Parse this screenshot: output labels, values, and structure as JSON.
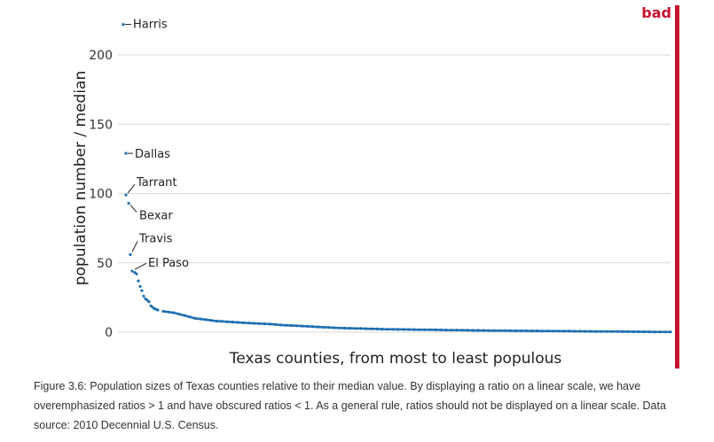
{
  "badge": {
    "label": "bad",
    "color": "#c8102e"
  },
  "chart_data": {
    "type": "scatter",
    "title": "",
    "xlabel": "Texas counties, from most to least populous",
    "ylabel": "population number / median",
    "ylim": [
      0,
      230
    ],
    "yticks": [
      0,
      50,
      100,
      150,
      200
    ],
    "grid": true,
    "point_color": "#1f6fb2",
    "series": [
      {
        "values": [
          222,
          129,
          99,
          93,
          56,
          44,
          43,
          42,
          37,
          33,
          30,
          26,
          24,
          23,
          22,
          19,
          18,
          17,
          16.5,
          16,
          15,
          14.5,
          14,
          13,
          12,
          11,
          10,
          9.5,
          9,
          8.5,
          8,
          7.8,
          7.5,
          7.3,
          7,
          6.8,
          6.6,
          6.4,
          6.2,
          6,
          5.8,
          5.5,
          5.2,
          5,
          4.8,
          4.6,
          4.4,
          4.2,
          4,
          3.8,
          3.6,
          3.4,
          3.2,
          3,
          2.9,
          2.8,
          2.7,
          2.6,
          2.5,
          2.4,
          2.3,
          2.2,
          2.1,
          2.05,
          2,
          1.95,
          1.9,
          1.85,
          1.8,
          1.75,
          1.7,
          1.65,
          1.6,
          1.55,
          1.5,
          1.45,
          1.4,
          1.35,
          1.3,
          1.26,
          1.22,
          1.18,
          1.14,
          1.1,
          1.06,
          1.02,
          0.99,
          0.96,
          0.93,
          0.9,
          0.87,
          0.84,
          0.81,
          0.78,
          0.75,
          0.72,
          0.69,
          0.66,
          0.63,
          0.6,
          0.57,
          0.54,
          0.51,
          0.48,
          0.45,
          0.42,
          0.39,
          0.36,
          0.33,
          0.3,
          0.27,
          0.24,
          0.21,
          0.18,
          0.15,
          0.12
        ]
      }
    ],
    "annotations": [
      {
        "label": "Harris",
        "value": 222
      },
      {
        "label": "Dallas",
        "value": 129
      },
      {
        "label": "Tarrant",
        "value": 99
      },
      {
        "label": "Bexar",
        "value": 93
      },
      {
        "label": "Travis",
        "value": 56
      },
      {
        "label": "El Paso",
        "value": 44
      }
    ]
  },
  "caption": "Figure 3.6: Population sizes of Texas counties relative to their median value. By displaying a ratio on a linear scale, we have overemphasized ratios > 1 and have obscured ratios < 1. As a general rule, ratios should not be displayed on a linear scale. Data source: 2010 Decennial U.S. Census."
}
